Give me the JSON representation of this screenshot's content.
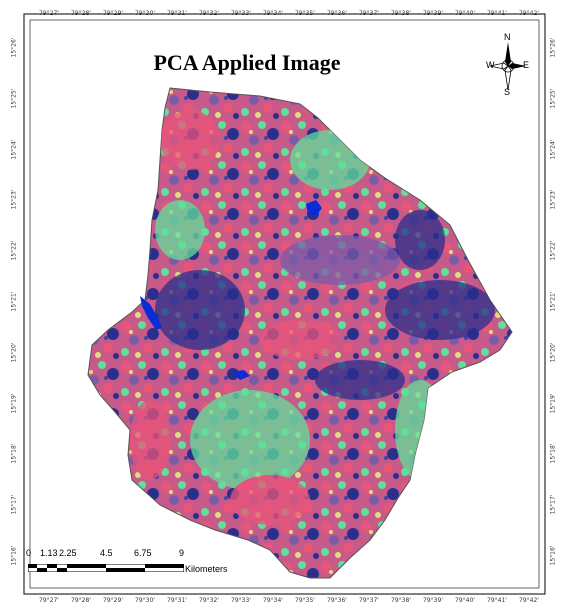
{
  "title": "PCA Applied Image",
  "top_ticks": [
    "79°27'",
    "79°28'",
    "79°29'",
    "79°30'",
    "79°31'",
    "79°32'",
    "79°33'",
    "79°34'",
    "79°35'",
    "79°36'",
    "79°37'",
    "79°38'",
    "79°39'",
    "79°40'",
    "79°41'",
    "79°42'"
  ],
  "bottom_ticks": [
    "79°27'",
    "79°28'",
    "79°29'",
    "79°30'",
    "79°31'",
    "79°32'",
    "79°33'",
    "79°34'",
    "79°35'",
    "79°36'",
    "79°37'",
    "79°38'",
    "79°39'",
    "79°40'",
    "79°41'",
    "79°42'"
  ],
  "left_ticks": [
    "15°26'",
    "15°25'",
    "15°24'",
    "15°23'",
    "15°22'",
    "15°21'",
    "15°20'",
    "15°19'",
    "15°18'",
    "15°17'",
    "15°16'"
  ],
  "right_ticks": [
    "15°26'",
    "15°25'",
    "15°24'",
    "15°23'",
    "15°22'",
    "15°21'",
    "15°20'",
    "15°19'",
    "15°18'",
    "15°17'",
    "15°16'"
  ],
  "compass": {
    "n": "N",
    "s": "S",
    "e": "E",
    "w": "W"
  },
  "scale": {
    "values": [
      "0",
      "1.13",
      "2.25",
      "4.5",
      "6.75",
      "9"
    ],
    "unit": "Kilometers"
  },
  "colors": {
    "pink": "#e8557a",
    "green": "#5fe09a",
    "blue": "#2a2f8c",
    "purple": "#7b5aa8",
    "yellow": "#d9e07a",
    "water": "#0a2cd8"
  }
}
